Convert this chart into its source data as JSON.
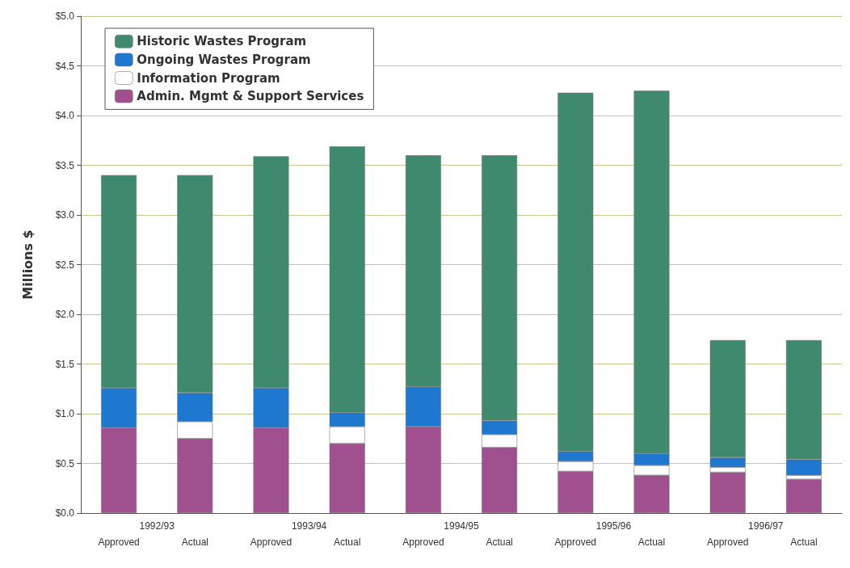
{
  "chart_data": {
    "type": "bar",
    "stacked": true,
    "ylabel": "Millions $",
    "categories": [
      "Approved",
      "Actual",
      "Approved",
      "Actual",
      "Approved",
      "Actual",
      "Approved",
      "Actual",
      "Approved",
      "Actual"
    ],
    "annotations": [
      "1992/93",
      "1993/94",
      "1994/95",
      "1995/96",
      "1996/97"
    ],
    "series": [
      {
        "name": "Admin. Mgmt & Support Services",
        "color": "#a0508f",
        "values": [
          0.86,
          0.75,
          0.86,
          0.7,
          0.87,
          0.66,
          0.42,
          0.38,
          0.41,
          0.34
        ]
      },
      {
        "name": "Information Program",
        "color": "#ffffff",
        "values": [
          null,
          0.17,
          null,
          0.17,
          null,
          0.13,
          0.1,
          0.1,
          0.05,
          0.04
        ]
      },
      {
        "name": "Ongoing Wastes Program",
        "color": "#1f78d0",
        "values": [
          0.4,
          0.29,
          0.4,
          0.14,
          0.4,
          0.14,
          0.1,
          0.12,
          0.1,
          0.16
        ]
      },
      {
        "name": "Historic Wastes Program",
        "color": "#3f8a6e",
        "values": [
          2.14,
          2.19,
          2.33,
          2.68,
          2.33,
          2.67,
          3.61,
          3.65,
          1.18,
          1.2
        ]
      }
    ],
    "ylim": [
      0,
      5
    ],
    "yticks": [
      {
        "value": 0,
        "label": "$0.0"
      },
      {
        "value": 0.5,
        "label": "$0.5"
      },
      {
        "value": 1,
        "label": "$1.0"
      },
      {
        "value": 1.5,
        "label": "$1.5"
      },
      {
        "value": 2,
        "label": "$2.0"
      },
      {
        "value": 2.5,
        "label": "$2.5"
      },
      {
        "value": 3,
        "label": "$3.0"
      },
      {
        "value": 3.5,
        "label": "$3.5"
      },
      {
        "value": 4,
        "label": "$4.0"
      },
      {
        "value": 4.5,
        "label": "$4.5"
      },
      {
        "value": 5,
        "label": "$5.0"
      }
    ],
    "grid": "y",
    "legend": "top left"
  }
}
